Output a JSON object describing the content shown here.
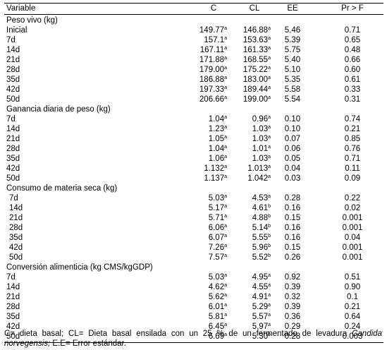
{
  "headers": {
    "variable": "Variable",
    "c": "C",
    "cl": "CL",
    "ee": "EE",
    "pr": "Pr > F"
  },
  "sections": [
    {
      "title": "Peso vivo (kg)",
      "rows": [
        {
          "label": "Inicial",
          "c": "149.77",
          "c_sup": "a",
          "cl": "146.88",
          "cl_sup": "a",
          "ee": "5.46",
          "pr": "0.71"
        },
        {
          "label": "7d",
          "c": "157.1",
          "c_sup": "a",
          "cl": "153.63",
          "cl_sup": "a",
          "ee": "5.39",
          "pr": "0.65"
        },
        {
          "label": "14d",
          "c": "167.11",
          "c_sup": "a",
          "cl": "161.33",
          "cl_sup": "a",
          "ee": "5.75",
          "pr": "0.48"
        },
        {
          "label": "21d",
          "c": "171.88",
          "c_sup": "a",
          "cl": "168.55",
          "cl_sup": "a",
          "ee": "5.40",
          "pr": "0.66"
        },
        {
          "label": "28d",
          "c": "179.00",
          "c_sup": "a",
          "cl": "175.22",
          "cl_sup": "a",
          "ee": "5.10",
          "pr": "0.60"
        },
        {
          "label": "35d",
          "c": "186.88",
          "c_sup": "a",
          "cl": "183.00",
          "cl_sup": "a",
          "ee": "5.35",
          "pr": "0.61"
        },
        {
          "label": "42d",
          "c": "197.33",
          "c_sup": "a",
          "cl": "189.44",
          "cl_sup": "a",
          "ee": "5.58",
          "pr": "0.33"
        },
        {
          "label": "50d",
          "c": "206.66",
          "c_sup": "a",
          "cl": "199.00",
          "cl_sup": "a",
          "ee": "5.54",
          "pr": "0.31"
        }
      ]
    },
    {
      "title": "Ganancia diaria de peso (kg)",
      "rows": [
        {
          "label": "7d",
          "c": "1.04",
          "c_sup": "a",
          "cl": "0.96",
          "cl_sup": "a",
          "ee": "0.10",
          "pr": "0.74"
        },
        {
          "label": "14d",
          "c": "1.23",
          "c_sup": "a",
          "cl": "1.03",
          "cl_sup": "a",
          "ee": "0.10",
          "pr": "0.21"
        },
        {
          "label": "21d",
          "c": "1.05",
          "c_sup": "a",
          "cl": "1.03",
          "cl_sup": "a",
          "ee": "0.07",
          "pr": "0.85"
        },
        {
          "label": "28d",
          "c": "1.04",
          "c_sup": "a",
          "cl": "1.01",
          "cl_sup": "a",
          "ee": "0.06",
          "pr": "0.76"
        },
        {
          "label": "35d",
          "c": "1.06",
          "c_sup": "a",
          "cl": "1.03",
          "cl_sup": "a",
          "ee": "0.05",
          "pr": "0.71"
        },
        {
          "label": "42d",
          "c": "1.132",
          "c_sup": "a",
          "cl": "1.013",
          "cl_sup": "a",
          "ee": "0.04",
          "pr": "0.11"
        },
        {
          "label": "50d",
          "c": "1.137",
          "c_sup": "a",
          "cl": "1.042",
          "cl_sup": "a",
          "ee": "0.03",
          "pr": "0.09"
        }
      ]
    },
    {
      "title": "Consumo de materia seca (kg)",
      "indent": true,
      "rows": [
        {
          "label": "7d",
          "c": "5.03",
          "c_sup": "a",
          "cl": "4.53",
          "cl_sup": "a",
          "ee": "0.28",
          "pr": "0.22"
        },
        {
          "label": "14d",
          "c": "5.17",
          "c_sup": "a",
          "cl": "4.61",
          "cl_sup": "b",
          "ee": "0.16",
          "pr": "0.02"
        },
        {
          "label": "21d",
          "c": "5.71",
          "c_sup": "a",
          "cl": "4.88",
          "cl_sup": "b",
          "ee": "0.15",
          "pr": "0.001"
        },
        {
          "label": "28d",
          "c": "6.06",
          "c_sup": "a",
          "cl": "5.14",
          "cl_sup": "b",
          "ee": "0.16",
          "pr": "0.001"
        },
        {
          "label": "35d",
          "c": "6.07",
          "c_sup": "a",
          "cl": "5.55",
          "cl_sup": "b",
          "ee": "0.16",
          "pr": "0.04"
        },
        {
          "label": "42d",
          "c": "7.26",
          "c_sup": "a",
          "cl": "5.96",
          "cl_sup": "b",
          "ee": "0.15",
          "pr": "0.001"
        },
        {
          "label": "50d",
          "c": "7.57",
          "c_sup": "a",
          "cl": "5.52",
          "cl_sup": "b",
          "ee": "0.26",
          "pr": "0.001"
        }
      ]
    },
    {
      "title": "Conversión alimenticia (kg CMS/kgGDP)",
      "rows": [
        {
          "label": "7d",
          "c": "5.03",
          "c_sup": "a",
          "cl": "4.95",
          "cl_sup": "a",
          "ee": "0.92",
          "pr": "0.51"
        },
        {
          "label": "14d",
          "c": "4.62",
          "c_sup": "a",
          "cl": "4.55",
          "cl_sup": "a",
          "ee": "0.39",
          "pr": "0.90"
        },
        {
          "label": "21d",
          "c": "5.62",
          "c_sup": "a",
          "cl": "4.91",
          "cl_sup": "a",
          "ee": "0.32",
          "pr": "0.1"
        },
        {
          "label": "28d",
          "c": "6.01",
          "c_sup": "a",
          "cl": "5.29",
          "cl_sup": "a",
          "ee": "0.39",
          "pr": "0.21"
        },
        {
          "label": "35d",
          "c": "5.81",
          "c_sup": "a",
          "cl": "5.57",
          "cl_sup": "a",
          "ee": "0.36",
          "pr": "0.64"
        },
        {
          "label": "42d",
          "c": "6.45",
          "c_sup": "a",
          "cl": "5.97",
          "cl_sup": "a",
          "ee": "0.29",
          "pr": "0.24"
        },
        {
          "label": "50d",
          "c": "6.69",
          "c_sup": "a",
          "cl": "5.30",
          "cl_sup": "b",
          "ee": "0.28",
          "pr": "0.003"
        }
      ]
    }
  ],
  "footnote": {
    "line1_words": [
      "C=",
      "dieta",
      "basal;",
      "CL=",
      "Dieta",
      "basal",
      "ensilada",
      "con",
      "un",
      "25",
      "%",
      "de",
      "un",
      "fermentado",
      "de",
      "levadura"
    ],
    "line1_italic": "Candida",
    "line2_italic": "norvegensis;",
    "line2_rest": " E.E= Error estándar."
  }
}
